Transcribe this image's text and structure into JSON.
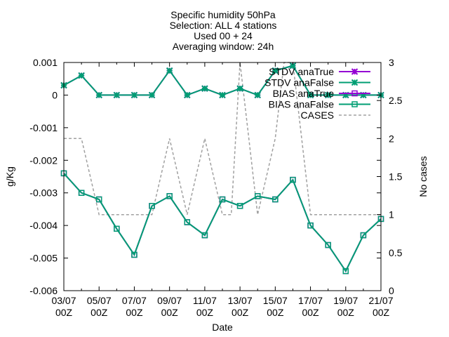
{
  "chart_data": {
    "type": "line",
    "title_lines": [
      "Specific humidity 50hPa",
      "Selection: ALL       4 stations",
      "Used 00 + 24",
      "Averaging window: 24h"
    ],
    "xlabel": "Date",
    "ylabel": "g/Kg",
    "y2label": "No cases",
    "x_ticks": [
      [
        "03/07",
        "00Z"
      ],
      [
        "05/07",
        "00Z"
      ],
      [
        "07/07",
        "00Z"
      ],
      [
        "09/07",
        "00Z"
      ],
      [
        "11/07",
        "00Z"
      ],
      [
        "13/07",
        "00Z"
      ],
      [
        "15/07",
        "00Z"
      ],
      [
        "17/07",
        "00Z"
      ],
      [
        "19/07",
        "00Z"
      ],
      [
        "21/07",
        "00Z"
      ]
    ],
    "y_ticks": [
      "0.001",
      "0",
      "-0.001",
      "-0.002",
      "-0.003",
      "-0.004",
      "-0.005",
      "-0.006"
    ],
    "y_tick_values": [
      0.001,
      0,
      -0.001,
      -0.002,
      -0.003,
      -0.004,
      -0.005,
      -0.006
    ],
    "y2_ticks": [
      "3",
      "2.5",
      "2",
      "1.5",
      "1",
      "0.5",
      "0"
    ],
    "y2_tick_values": [
      3,
      2.5,
      2,
      1.5,
      1,
      0.5,
      0
    ],
    "xlim": [
      0,
      18
    ],
    "ylim": [
      -0.006,
      0.001
    ],
    "y2lim": [
      0,
      3
    ],
    "legend_position": "top-right",
    "grid": false,
    "series": [
      {
        "name": "STDV anaTrue",
        "color": "#9400d3",
        "marker": "star",
        "axis": "y",
        "x": [
          0,
          1,
          2,
          3,
          4,
          5,
          6,
          7,
          8,
          9,
          10,
          11,
          12,
          13,
          14,
          15,
          16,
          17,
          18
        ],
        "values": [
          0.0003,
          0.0006,
          0.0,
          0.0,
          0.0,
          0.0,
          0.00075,
          0.0,
          0.0002,
          0.0,
          0.0002,
          0.0,
          0.00075,
          0.0009,
          0.0,
          0.0,
          0.0,
          0.0,
          0.0
        ]
      },
      {
        "name": "STDV anaFalse",
        "color": "#009e73",
        "marker": "star",
        "axis": "y",
        "x": [
          0,
          1,
          2,
          3,
          4,
          5,
          6,
          7,
          8,
          9,
          10,
          11,
          12,
          13,
          14,
          15,
          16,
          17,
          18
        ],
        "values": [
          0.0003,
          0.0006,
          0.0,
          0.0,
          0.0,
          0.0,
          0.00075,
          0.0,
          0.0002,
          0.0,
          0.0002,
          0.0,
          0.00075,
          0.0009,
          0.0,
          0.0,
          0.0,
          0.0,
          0.0
        ]
      },
      {
        "name": "BIAS anaTrue",
        "color": "#9400d3",
        "marker": "box",
        "axis": "y",
        "x": [
          0,
          1,
          2,
          3,
          4,
          5,
          6,
          7,
          8,
          9,
          10,
          11,
          12,
          13,
          14,
          15,
          16,
          17,
          18
        ],
        "values": [
          -0.0024,
          -0.003,
          -0.0032,
          -0.0041,
          -0.0049,
          -0.0034,
          -0.0031,
          -0.0039,
          -0.0043,
          -0.0032,
          -0.0034,
          -0.0031,
          -0.0032,
          -0.0026,
          -0.004,
          -0.0046,
          -0.0054,
          -0.0043,
          -0.0038
        ]
      },
      {
        "name": "BIAS anaFalse",
        "color": "#009e73",
        "marker": "box",
        "axis": "y",
        "x": [
          0,
          1,
          2,
          3,
          4,
          5,
          6,
          7,
          8,
          9,
          10,
          11,
          12,
          13,
          14,
          15,
          16,
          17,
          18
        ],
        "values": [
          -0.0024,
          -0.003,
          -0.0032,
          -0.0041,
          -0.0049,
          -0.0034,
          -0.0031,
          -0.0039,
          -0.0043,
          -0.0032,
          -0.0034,
          -0.0031,
          -0.0032,
          -0.0026,
          -0.004,
          -0.0046,
          -0.0054,
          -0.0043,
          -0.0038
        ]
      },
      {
        "name": "CASES",
        "color": "#a0a0a0",
        "marker": "none",
        "dash": true,
        "axis": "y2",
        "x": [
          0,
          0.5,
          1,
          1.5,
          2,
          2.5,
          3,
          3.5,
          4,
          4.5,
          5,
          5.5,
          6,
          6.5,
          7,
          7.5,
          8,
          8.5,
          9,
          9.5,
          10,
          10.5,
          11,
          11.5,
          12,
          12.5,
          13,
          13.5,
          14,
          14.5,
          15,
          15.5,
          16,
          16.5,
          17,
          17.5,
          18
        ],
        "values": [
          2,
          2,
          2,
          1.5,
          1,
          1,
          1,
          1,
          1,
          1,
          1,
          1.5,
          2,
          1.5,
          1,
          1.5,
          2,
          1.5,
          1,
          1,
          3,
          2,
          1,
          1.5,
          2,
          3,
          3,
          2,
          1,
          1,
          1,
          1,
          1,
          1,
          1,
          1,
          1
        ]
      }
    ]
  }
}
